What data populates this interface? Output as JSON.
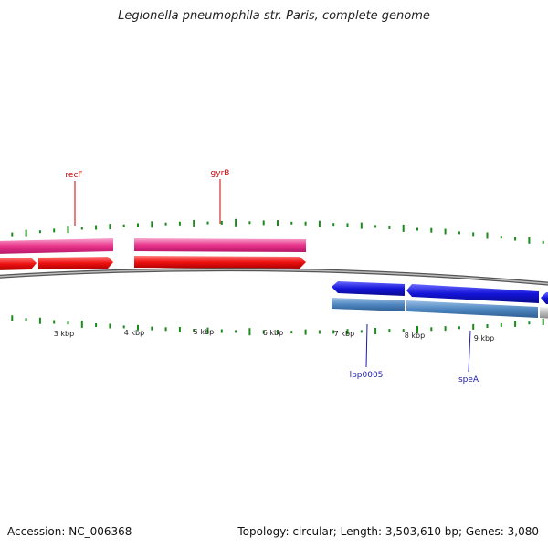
{
  "title": "Legionella pneumophila str. Paris, complete genome",
  "footer": {
    "accession": "Accession: NC_006368",
    "summary": "Topology: circular; Length: 3,503,610 bp; Genes: 3,080"
  },
  "colors": {
    "gc_tick": "#1a8a1a",
    "backbone": "#8a8a8a",
    "cds_pink": "#e8338a",
    "cds_red": "#ee1111",
    "cds_blue": "#1414d8",
    "cds_lightblue": "#4f86c0",
    "cds_gray": "#bbbbbb",
    "label_red": "#cc0000",
    "label_blue": "#1a1aa8"
  },
  "scale": {
    "labels": [
      "3 kbp",
      "4 kbp",
      "5 kbp",
      "6 kbp",
      "7 kbp",
      "8 kbp",
      "9 kbp"
    ]
  },
  "gene_labels": [
    {
      "name": "recF",
      "color": "label_red"
    },
    {
      "name": "gyrB",
      "color": "label_red"
    },
    {
      "name": "lpp0005",
      "color": "label_blue"
    },
    {
      "name": "speA",
      "color": "label_blue"
    }
  ]
}
